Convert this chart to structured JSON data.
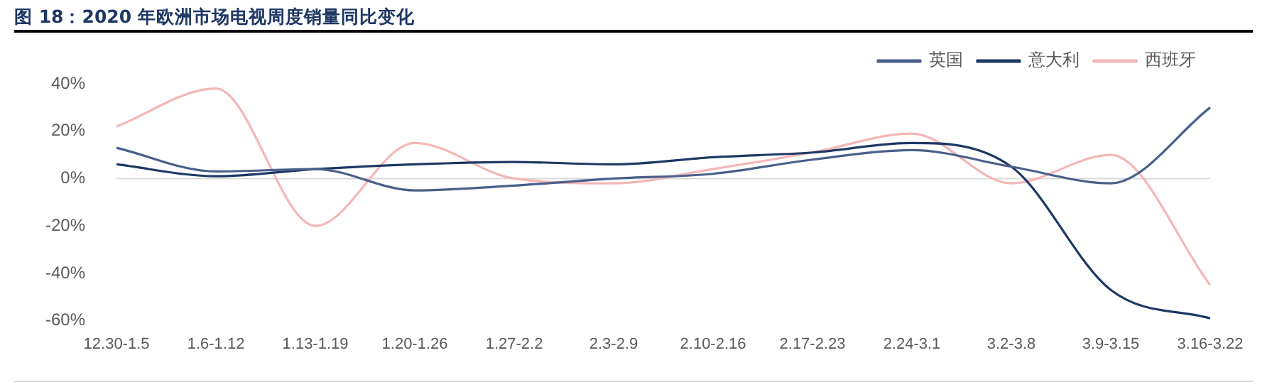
{
  "chart_data": {
    "type": "line",
    "title": "图 18：2020 年欧洲市场电视周度销量同比变化",
    "categories": [
      "12.30-1.5",
      "1.6-1.12",
      "1.13-1.19",
      "1.20-1.26",
      "1.27-2.2",
      "2.3-2.9",
      "2.10-2.16",
      "2.17-2.23",
      "2.24-3.1",
      "3.2-3.8",
      "3.9-3.15",
      "3.16-3.22"
    ],
    "series": [
      {
        "name": "英国",
        "color": "#4a5f8a",
        "values": [
          13,
          3,
          4,
          -5,
          -3,
          0,
          2,
          8,
          12,
          5,
          -2,
          30
        ]
      },
      {
        "name": "意大利",
        "color": "#1f3864",
        "values": [
          6,
          1,
          4,
          6,
          7,
          6,
          9,
          11,
          15,
          5,
          -47,
          -59
        ]
      },
      {
        "name": "西班牙",
        "color": "#f4b6b6",
        "values": [
          22,
          38,
          -20,
          15,
          0,
          -2,
          4,
          11,
          19,
          -2,
          10,
          -45
        ]
      }
    ],
    "ylim": [
      -60,
      40
    ],
    "yticks": [
      {
        "value": -60,
        "label": "-60%"
      },
      {
        "value": -40,
        "label": "-40%"
      },
      {
        "value": -20,
        "label": "-20%"
      },
      {
        "value": 0,
        "label": "0%"
      },
      {
        "value": 20,
        "label": "20%"
      },
      {
        "value": 40,
        "label": "40%"
      }
    ],
    "ref_lines": [
      {
        "axis": "y",
        "value": 0,
        "color": "#d9d9d9"
      }
    ],
    "grid": false,
    "legend": "top right",
    "marker": "none",
    "line_style": "solid"
  }
}
